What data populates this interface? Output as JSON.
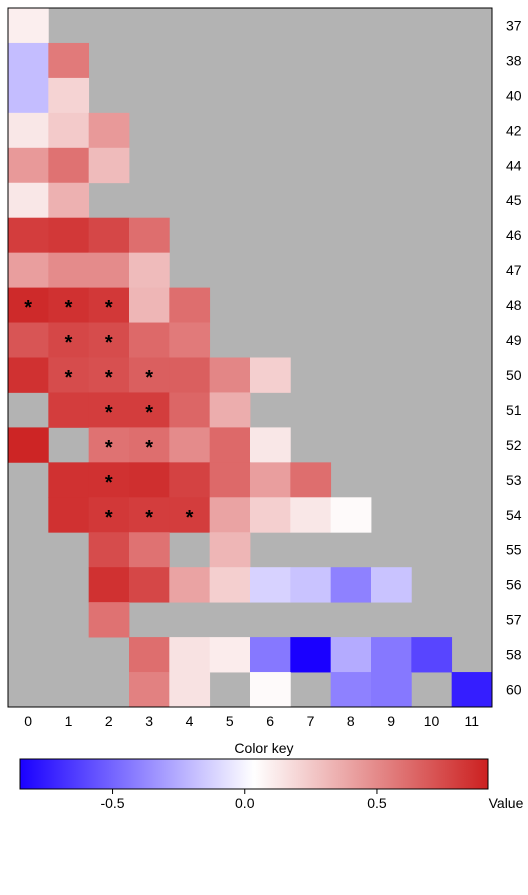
{
  "chart_data": {
    "type": "heatmap",
    "x_categories": [
      "0",
      "1",
      "2",
      "3",
      "4",
      "5",
      "6",
      "7",
      "8",
      "9",
      "10",
      "11"
    ],
    "y_categories": [
      "37",
      "38",
      "40",
      "42",
      "44",
      "45",
      "46",
      "47",
      "48",
      "49",
      "50",
      "51",
      "52",
      "53",
      "54",
      "55",
      "56",
      "57",
      "58",
      "60"
    ],
    "values": [
      [
        0.07,
        null,
        null,
        null,
        null,
        null,
        null,
        null,
        null,
        null,
        null,
        null
      ],
      [
        -0.22,
        0.55,
        null,
        null,
        null,
        null,
        null,
        null,
        null,
        null,
        null,
        null
      ],
      [
        -0.22,
        0.18,
        null,
        null,
        null,
        null,
        null,
        null,
        null,
        null,
        null,
        null
      ],
      [
        0.1,
        0.22,
        0.42,
        null,
        null,
        null,
        null,
        null,
        null,
        null,
        null,
        null
      ],
      [
        0.42,
        0.58,
        0.28,
        null,
        null,
        null,
        null,
        null,
        null,
        null,
        null,
        null
      ],
      [
        0.1,
        0.32,
        null,
        null,
        null,
        null,
        null,
        null,
        null,
        null,
        null,
        null
      ],
      [
        0.8,
        0.82,
        0.76,
        0.6,
        null,
        null,
        null,
        null,
        null,
        null,
        null,
        null
      ],
      [
        0.4,
        0.48,
        0.48,
        0.28,
        null,
        null,
        null,
        null,
        null,
        null,
        null,
        null
      ],
      [
        0.88,
        0.85,
        0.82,
        0.3,
        0.6,
        null,
        null,
        null,
        null,
        null,
        null,
        null
      ],
      [
        0.7,
        0.76,
        0.74,
        0.62,
        0.55,
        null,
        null,
        null,
        null,
        null,
        null,
        null
      ],
      [
        0.85,
        0.74,
        0.72,
        0.66,
        0.66,
        0.5,
        0.2,
        null,
        null,
        null,
        null,
        null
      ],
      [
        null,
        0.8,
        0.8,
        0.8,
        0.63,
        0.34,
        null,
        null,
        null,
        null,
        null,
        null
      ],
      [
        0.9,
        null,
        0.58,
        0.6,
        0.48,
        0.62,
        0.1,
        null,
        null,
        null,
        null,
        null
      ],
      [
        null,
        0.85,
        0.85,
        0.86,
        0.78,
        0.62,
        0.4,
        0.6,
        null,
        null,
        null,
        null
      ],
      [
        null,
        0.85,
        0.82,
        0.8,
        0.8,
        0.38,
        0.2,
        0.1,
        0.02,
        null,
        null,
        null
      ],
      [
        null,
        null,
        0.74,
        0.58,
        null,
        0.3,
        null,
        null,
        null,
        null,
        null,
        null
      ],
      [
        null,
        null,
        0.85,
        0.76,
        0.38,
        0.2,
        -0.15,
        -0.2,
        -0.42,
        -0.2,
        null,
        null
      ],
      [
        null,
        null,
        0.58,
        null,
        null,
        null,
        null,
        null,
        null,
        null,
        null,
        null
      ],
      [
        null,
        null,
        null,
        0.6,
        0.12,
        0.08,
        -0.45,
        -0.85,
        -0.28,
        -0.45,
        -0.62,
        null
      ],
      [
        null,
        null,
        null,
        0.52,
        0.12,
        null,
        0.02,
        null,
        -0.42,
        -0.45,
        null,
        -0.75
      ]
    ],
    "significant": [
      [
        8,
        0
      ],
      [
        8,
        1
      ],
      [
        8,
        2
      ],
      [
        9,
        1
      ],
      [
        9,
        2
      ],
      [
        10,
        1
      ],
      [
        10,
        2
      ],
      [
        10,
        3
      ],
      [
        11,
        2
      ],
      [
        11,
        3
      ],
      [
        12,
        2
      ],
      [
        12,
        3
      ],
      [
        13,
        2
      ],
      [
        14,
        2
      ],
      [
        14,
        3
      ],
      [
        14,
        4
      ]
    ],
    "significance_marker": "*",
    "missing_color": "#b3b3b3",
    "colorscale": {
      "min": -0.85,
      "max": 0.92,
      "low": "#1a00ff",
      "mid": "#ffffff",
      "high": "#cc2020"
    },
    "colorbar": {
      "title": "Color key",
      "ticks": [
        "-0.5",
        "0.0",
        "0.5"
      ],
      "tick_values": [
        -0.5,
        0.0,
        0.5
      ],
      "label": "Value"
    }
  }
}
